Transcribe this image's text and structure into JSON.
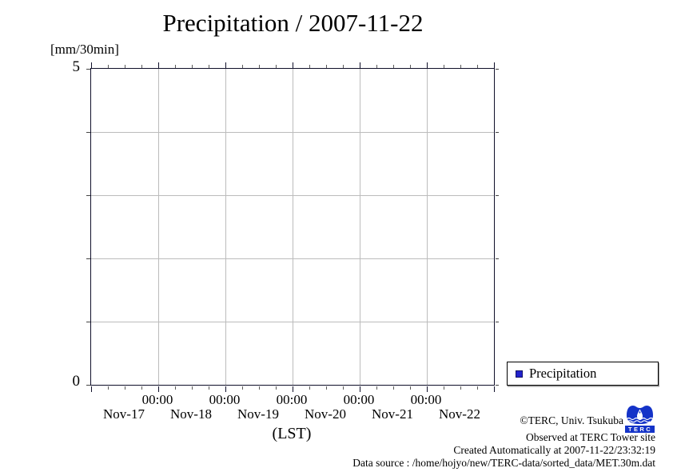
{
  "title": "Precipitation / 2007-11-22",
  "y_axis": {
    "unit_label": "[mm/30min]",
    "max_label": "5",
    "min_label": "0"
  },
  "x_axis": {
    "time_labels": [
      "00:00",
      "00:00",
      "00:00",
      "00:00",
      "00:00"
    ],
    "day_labels": [
      "Nov-17",
      "Nov-18",
      "Nov-19",
      "Nov-20",
      "Nov-21",
      "Nov-22"
    ],
    "title": "(LST)"
  },
  "legend": {
    "items": [
      {
        "label": "Precipitation",
        "color": "#2222cc"
      }
    ]
  },
  "credits": {
    "copyright": "©TERC, Univ. Tsukuba",
    "observed": "Observed at TERC Tower site",
    "created": "Created Automatically at 2007-11-22/23:32:19",
    "data_source": "Data source : /home/hojyo/new/TERC-data/sorted_data/MET.30m.dat"
  },
  "logo": {
    "text": "TERC",
    "color": "#1433c8"
  },
  "colors": {
    "frame": "#10102a",
    "gridline": "#bcbcbc",
    "legend_swatch": "#2222cc"
  },
  "chart_data": {
    "type": "bar",
    "title": "Precipitation / 2007-11-22",
    "xlabel": "(LST)",
    "ylabel": "[mm/30min]",
    "ylim": [
      0,
      5
    ],
    "yticks": [
      0,
      5
    ],
    "x_range": [
      "2007-11-17 00:00",
      "2007-11-23 00:00"
    ],
    "x_major_tick_labels_at": [
      "Nov-18 00:00",
      "Nov-19 00:00",
      "Nov-20 00:00",
      "Nov-21 00:00",
      "Nov-22 00:00"
    ],
    "x_minor_tick_hours": 6,
    "grid": true,
    "legend_position": "outside bottom-right",
    "series": [
      {
        "name": "Precipitation",
        "color": "#2222cc",
        "values": []
      }
    ]
  }
}
